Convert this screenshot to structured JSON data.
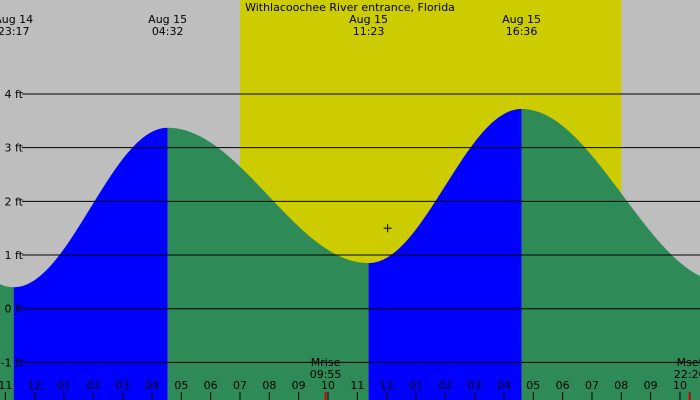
{
  "chart_data": {
    "type": "area",
    "title": "Withlacoochee River entrance, Florida",
    "y_unit": "ft",
    "ylim": [
      -1.7,
      5.75
    ],
    "xlim": [
      "2023-08-14 22:49",
      "2023-08-15 22:41"
    ],
    "yticks": [
      {
        "value": 4,
        "label": "4 ft"
      },
      {
        "value": 3,
        "label": "3 ft"
      },
      {
        "value": 2,
        "label": "2 ft"
      },
      {
        "value": 1,
        "label": "1 ft"
      },
      {
        "value": 0,
        "label": "0 ft"
      },
      {
        "value": -1,
        "label": "-1 ft"
      }
    ],
    "extremes": [
      {
        "type": "low",
        "date_label": "Aug 14",
        "time_label": "23:17",
        "time": "2023-08-14 23:17",
        "height": 0.4
      },
      {
        "type": "high",
        "date_label": "Aug 15",
        "time_label": "04:32",
        "time": "2023-08-15 04:32",
        "height": 3.37
      },
      {
        "type": "low",
        "date_label": "Aug 15",
        "time_label": "11:23",
        "time": "2023-08-15 11:23",
        "height": 0.85
      },
      {
        "type": "high",
        "date_label": "Aug 15",
        "time_label": "16:36",
        "time": "2023-08-15 16:36",
        "height": 3.72
      },
      {
        "type": "low",
        "time": "2023-08-15 23:30",
        "height": 0.5
      }
    ],
    "daylight": {
      "start": "2023-08-15 07:00",
      "end": "2023-08-15 20:00"
    },
    "current_time": {
      "time": "2023-08-15 12:02",
      "height": 1.5
    },
    "moon_events": [
      {
        "label": "Mrise",
        "time_label": "09:55",
        "time": "2023-08-15 09:55"
      },
      {
        "label": "Mset",
        "time_label": "22:20",
        "time": "2023-08-15 22:20"
      }
    ],
    "hour_labels": [
      "11",
      "12",
      "01",
      "02",
      "03",
      "04",
      "05",
      "06",
      "07",
      "08",
      "09",
      "10",
      "11",
      "12",
      "01",
      "02",
      "03",
      "04",
      "05",
      "06",
      "07",
      "08",
      "09",
      "10"
    ],
    "hour_start": "2023-08-14 23:00",
    "colors": {
      "night": "#bebebe",
      "day": "#cccc00",
      "rising": "#0000ff",
      "falling": "#2e8b57",
      "grid": "#000000",
      "moon_tick": "#cc0000",
      "hour_tick": "#000000"
    }
  }
}
